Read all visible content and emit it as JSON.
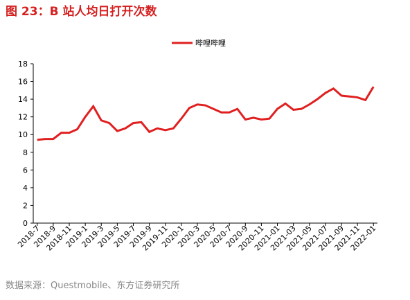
{
  "chart_data": {
    "type": "line",
    "title": "图 23：B 站人均日打开次数",
    "source": "数据来源：Questmobile、东方证券研究所",
    "categories": [
      "2018-7",
      null,
      "2018-9",
      null,
      "2018-11",
      null,
      "2019-1",
      null,
      "2019-3",
      null,
      "2019-5",
      null,
      "2019-7",
      null,
      "2019-9",
      null,
      "2019-11",
      null,
      "2020-1",
      null,
      "2020-3",
      null,
      "2020-5",
      null,
      "2020-7",
      null,
      "2020-9",
      null,
      "2020-11",
      null,
      "2021-01",
      null,
      "2021-03",
      null,
      "2021-05",
      null,
      "2021-07",
      null,
      "2021-09",
      null,
      "2021-11",
      null,
      "2022-01"
    ],
    "series": [
      {
        "name": "哔哩哔哩",
        "color": "#e02020",
        "values": [
          9.4,
          9.5,
          9.5,
          10.2,
          10.2,
          10.6,
          12.0,
          13.2,
          11.6,
          11.3,
          10.4,
          10.7,
          11.3,
          11.4,
          10.3,
          10.7,
          10.5,
          10.7,
          11.8,
          13.0,
          13.4,
          13.3,
          12.9,
          12.5,
          12.5,
          12.9,
          11.7,
          11.9,
          11.7,
          11.8,
          12.9,
          13.5,
          12.8,
          12.9,
          13.4,
          14.0,
          14.7,
          15.2,
          14.4,
          14.3,
          14.2,
          13.9,
          15.4
        ]
      }
    ],
    "ylim": [
      0,
      18
    ],
    "yticks": [
      0,
      2,
      4,
      6,
      8,
      10,
      12,
      14,
      16,
      18
    ],
    "legend": "top"
  }
}
